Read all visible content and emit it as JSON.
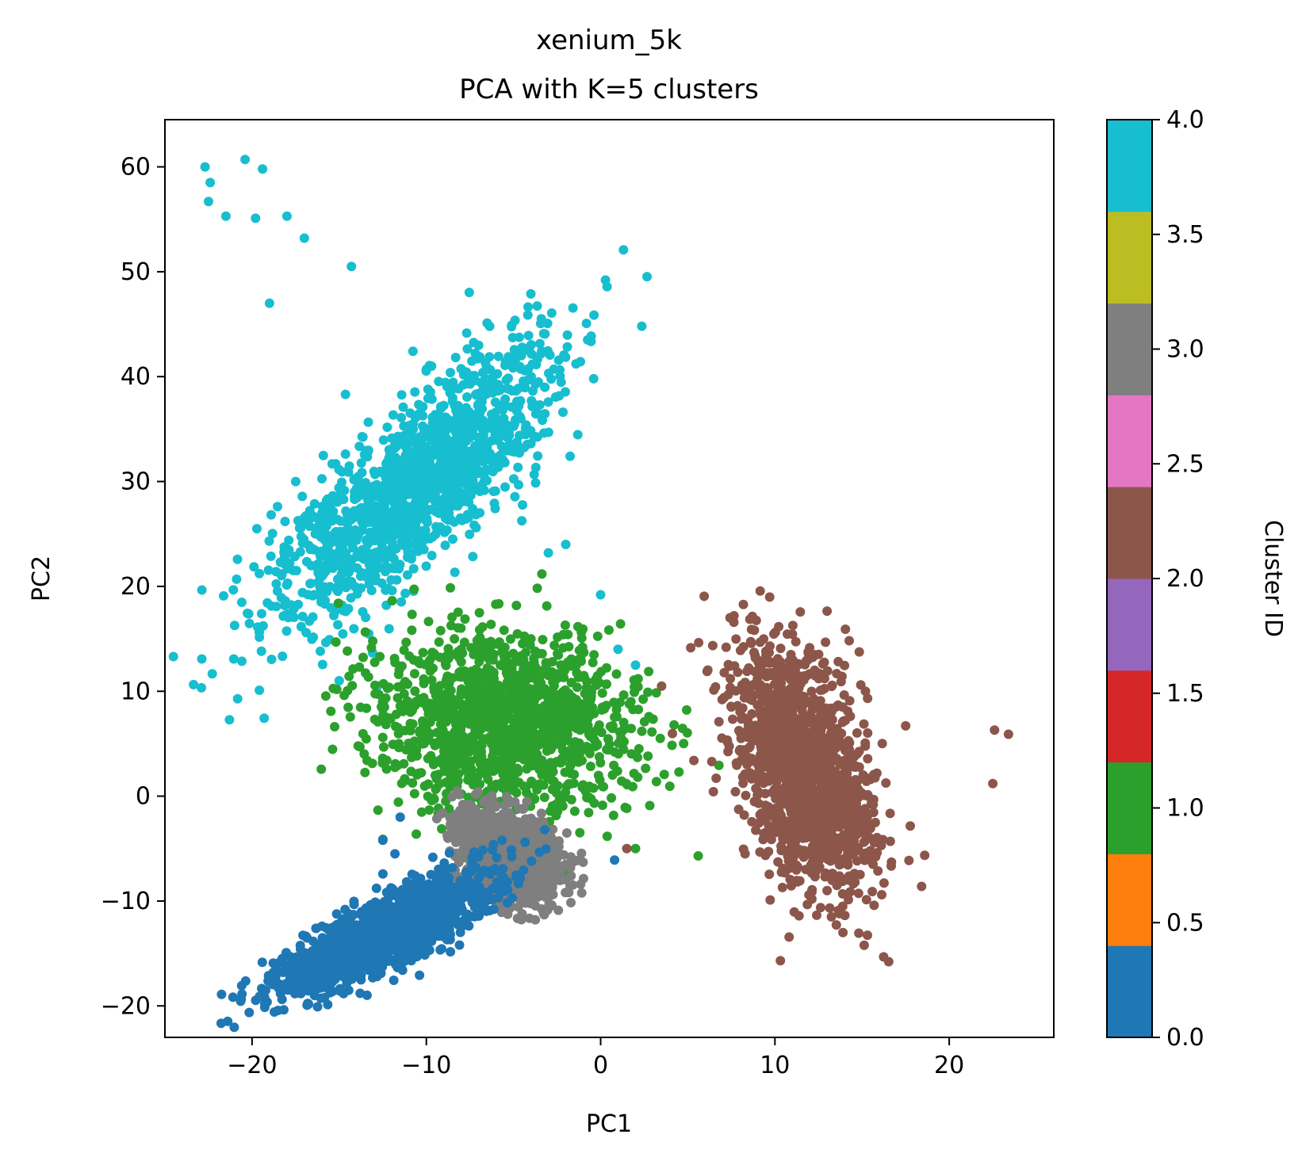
{
  "chart_data": {
    "type": "scatter",
    "title": "xenium_5k",
    "subtitle": "PCA with K=5 clusters",
    "xlabel": "PC1",
    "ylabel": "PC2",
    "xlim": [
      -25,
      26
    ],
    "ylim": [
      -23,
      64.5
    ],
    "xticks": [
      -20,
      -10,
      0,
      10,
      20
    ],
    "xtick_labels": [
      "−20",
      "−10",
      "0",
      "10",
      "20"
    ],
    "yticks": [
      -20,
      -10,
      0,
      10,
      20,
      30,
      40,
      50,
      60
    ],
    "ytick_labels": [
      "−20",
      "−10",
      "0",
      "10",
      "20",
      "30",
      "40",
      "50",
      "60"
    ],
    "grid": false,
    "colorbar": {
      "label": "Cluster ID",
      "range": [
        0.0,
        4.0
      ],
      "ticks": [
        0.0,
        0.5,
        1.0,
        1.5,
        2.0,
        2.5,
        3.0,
        3.5,
        4.0
      ],
      "tick_labels": [
        "0.0",
        "0.5",
        "1.0",
        "1.5",
        "2.0",
        "2.5",
        "3.0",
        "3.5",
        "4.0"
      ],
      "colors": [
        "#1f77b4",
        "#ff7f0e",
        "#2ca02c",
        "#d62728",
        "#9467bd",
        "#8c564b",
        "#e377c2",
        "#7f7f7f",
        "#bcbd22",
        "#17becf"
      ]
    },
    "clusters": [
      {
        "id": 4,
        "color": "#17becf",
        "center": [
          -10.5,
          30
        ],
        "spread": [
          2.2,
          7.5
        ],
        "angle_deg": 61,
        "points": [
          [
            -22.7,
            60.0
          ],
          [
            -22.4,
            58.5
          ],
          [
            -20.4,
            60.7
          ],
          [
            -19.4,
            59.8
          ],
          [
            -22.5,
            56.7
          ],
          [
            -19.8,
            55.1
          ],
          [
            -18.0,
            55.3
          ],
          [
            -21.5,
            55.3
          ],
          [
            -17.0,
            53.2
          ],
          [
            -14.3,
            50.5
          ],
          [
            -9.7,
            41.0
          ],
          [
            -5.5,
            33.2
          ],
          [
            -2.0,
            24.0
          ],
          [
            -3.0,
            23.2
          ],
          [
            0.0,
            19.2
          ],
          [
            -15.0,
            11.0
          ],
          [
            -12.8,
            10.5
          ],
          [
            2.0,
            12.5
          ],
          [
            1.0,
            14.0
          ],
          [
            -19.0,
            47.0
          ],
          [
            -17.5,
            30.0
          ],
          [
            -16.5,
            26.7
          ]
        ]
      },
      {
        "id": 1,
        "color": "#2ca02c",
        "center": [
          -5.5,
          7.0
        ],
        "spread": [
          4.5,
          3.5
        ],
        "angle_deg": 8,
        "points": [
          [
            -12.5,
            8.3
          ],
          [
            -12.5,
            5.6
          ],
          [
            -13.4,
            3.4
          ],
          [
            5.6,
            -5.7
          ],
          [
            2.0,
            -5.0
          ],
          [
            -4.0,
            15.0
          ]
        ]
      },
      {
        "id": 2,
        "color": "#8c564b",
        "center": [
          11.5,
          2.8
        ],
        "spread": [
          6.0,
          1.8
        ],
        "angle_deg": 10,
        "points": [
          [
            23.4,
            5.9
          ],
          [
            22.6,
            6.3
          ],
          [
            17.5,
            6.7
          ],
          [
            3.5,
            10.5
          ],
          [
            7.5,
            8.5
          ],
          [
            22.5,
            1.2
          ],
          [
            1.5,
            -5.0
          ]
        ]
      },
      {
        "id": 3,
        "color": "#7f7f7f",
        "center": [
          -5.3,
          -5.5
        ],
        "spread": [
          2.2,
          1.3
        ],
        "angle_deg": 20,
        "points": [
          [
            -4.4,
            -9.8
          ],
          [
            -6.9,
            -10.7
          ],
          [
            -3.4,
            -7.4
          ],
          [
            -2.0,
            -6.5
          ]
        ]
      },
      {
        "id": 0,
        "color": "#1f77b4",
        "center": [
          -12.3,
          -13.0
        ],
        "spread": [
          1.3,
          4.0
        ],
        "angle_deg": 43,
        "points": [
          [
            -15.8,
            -17.6
          ],
          [
            -13.8,
            -18.8
          ],
          [
            -8.1,
            -14.2
          ],
          [
            -7.5,
            -11.5
          ],
          [
            -12.5,
            -4.2
          ],
          [
            -11.5,
            -2.0
          ],
          [
            0.8,
            -6.1
          ],
          [
            -11.8,
            -5.5
          ]
        ]
      }
    ]
  }
}
